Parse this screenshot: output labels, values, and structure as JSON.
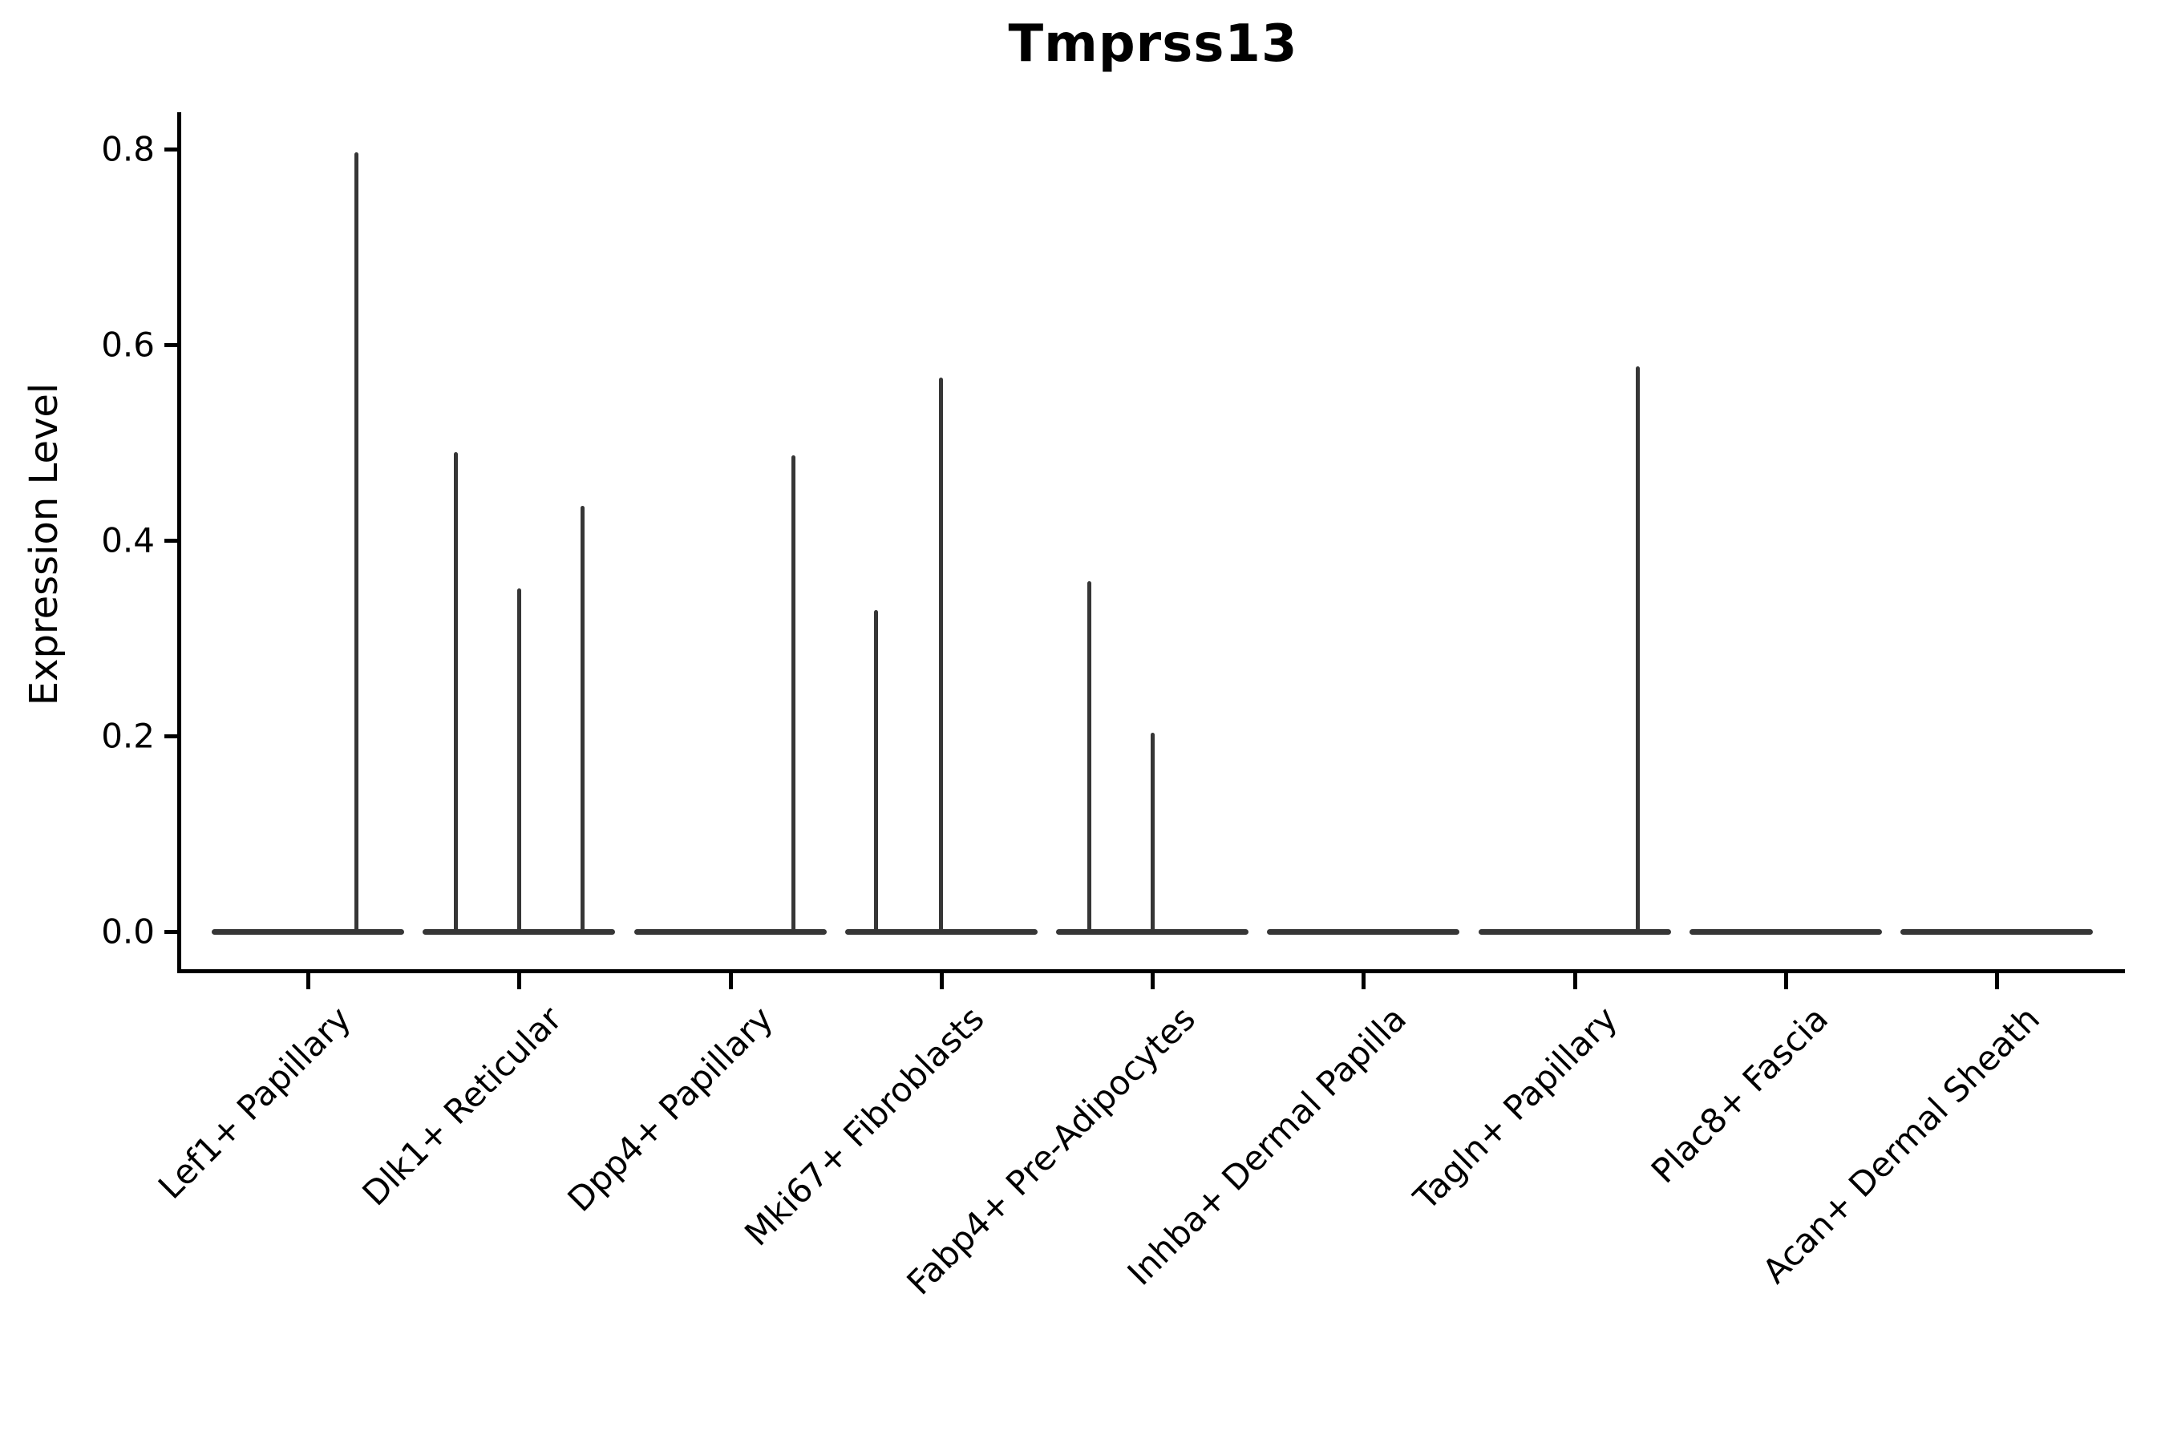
{
  "figure": {
    "title": "Tmprss13",
    "ylabel": "Expression Level"
  },
  "chart_data": {
    "type": "violin",
    "title": "Tmprss13",
    "xlabel": "",
    "ylabel": "Expression Level",
    "ylim": [
      0,
      0.84
    ],
    "yticks": [
      0.0,
      0.2,
      0.4,
      0.6,
      0.8
    ],
    "ytick_labels": [
      "0.0",
      "0.2",
      "0.4",
      "0.6",
      "0.8"
    ],
    "grid": false,
    "legend": "none",
    "categories": [
      "Lef1+ Papillary",
      "Dlk1+ Reticular",
      "Dpp4+ Papillary",
      "Mki67+ Fibroblasts",
      "Fabp4+ Pre-Adipocytes",
      "Inhba+ Dermal Papilla",
      "Tagln+ Papillary",
      "Plac8+ Fascia",
      "Acan+ Dermal Sheath"
    ],
    "series": [
      {
        "category": "Lef1+ Papillary",
        "baseline_value": 0.0,
        "expression_peaks": [
          {
            "value": 0.797,
            "x_offset_frac": 0.23
          }
        ]
      },
      {
        "category": "Dlk1+ Reticular",
        "baseline_value": 0.0,
        "expression_peaks": [
          {
            "value": 0.49,
            "x_offset_frac": -0.3
          },
          {
            "value": 0.351,
            "x_offset_frac": 0.0
          },
          {
            "value": 0.435,
            "x_offset_frac": 0.3
          }
        ]
      },
      {
        "category": "Dpp4+ Papillary",
        "baseline_value": 0.0,
        "expression_peaks": [
          {
            "value": 0.487,
            "x_offset_frac": 0.3
          }
        ]
      },
      {
        "category": "Mki67+ Fibroblasts",
        "baseline_value": 0.0,
        "expression_peaks": [
          {
            "value": 0.329,
            "x_offset_frac": -0.31
          },
          {
            "value": 0.566,
            "x_offset_frac": 0.0
          }
        ]
      },
      {
        "category": "Fabp4+ Pre-Adipocytes",
        "baseline_value": 0.0,
        "expression_peaks": [
          {
            "value": 0.358,
            "x_offset_frac": -0.3
          },
          {
            "value": 0.203,
            "x_offset_frac": 0.0
          }
        ]
      },
      {
        "category": "Inhba+ Dermal Papilla",
        "baseline_value": 0.0,
        "expression_peaks": []
      },
      {
        "category": "Tagln+ Papillary",
        "baseline_value": 0.0,
        "expression_peaks": [
          {
            "value": 0.578,
            "x_offset_frac": 0.3
          }
        ]
      },
      {
        "category": "Plac8+ Fascia",
        "baseline_value": 0.0,
        "expression_peaks": []
      },
      {
        "category": "Acan+ Dermal Sheath",
        "baseline_value": 0.0,
        "expression_peaks": []
      }
    ],
    "colors": {
      "violin": "#363636",
      "axis": "#000000",
      "text": "#000000",
      "background": "#ffffff"
    }
  }
}
